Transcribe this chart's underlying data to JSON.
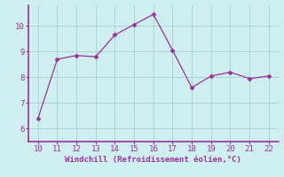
{
  "x": [
    10,
    11,
    12,
    13,
    14,
    15,
    16,
    17,
    18,
    19,
    20,
    21,
    22
  ],
  "y": [
    6.4,
    8.7,
    8.85,
    8.8,
    9.65,
    10.05,
    10.45,
    9.05,
    7.6,
    8.05,
    8.2,
    7.95,
    8.05
  ],
  "line_color": "#993399",
  "marker": "D",
  "marker_size": 2.5,
  "bg_color": "#ceeef0",
  "grid_color": "#aad4d8",
  "xlabel": "Windchill (Refroidissement éolien,°C)",
  "xlabel_color": "#993399",
  "tick_color": "#993399",
  "xlim": [
    9.5,
    22.5
  ],
  "ylim": [
    5.5,
    10.8
  ],
  "xticks": [
    10,
    11,
    12,
    13,
    14,
    15,
    16,
    17,
    18,
    19,
    20,
    21,
    22
  ],
  "yticks": [
    6,
    7,
    8,
    9,
    10
  ],
  "spine_color": "#993399",
  "label_fontsize": 6.5,
  "tick_fontsize": 6.5
}
